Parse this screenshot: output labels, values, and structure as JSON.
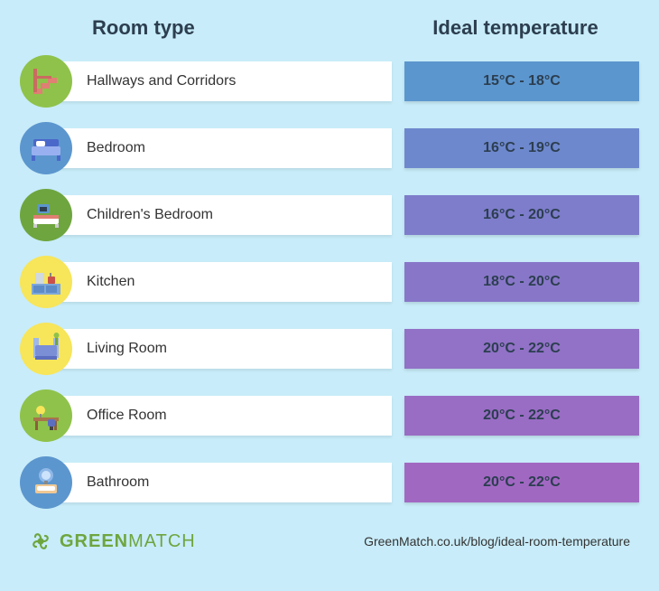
{
  "header": {
    "room_label": "Room type",
    "temp_label": "Ideal temperature"
  },
  "rows": [
    {
      "label": "Hallways and Corridors",
      "temp": "15°C - 18°C",
      "temp_bg": "#5c96ce",
      "icon_bg": "#8fc24a",
      "icon_key": "stairs"
    },
    {
      "label": "Bedroom",
      "temp": "16°C - 19°C",
      "temp_bg": "#6e88ce",
      "icon_bg": "#5c96ce",
      "icon_key": "bed"
    },
    {
      "label": "Children's Bedroom",
      "temp": "16°C - 20°C",
      "temp_bg": "#7d7dcb",
      "icon_bg": "#6fa53f",
      "icon_key": "kidsbed"
    },
    {
      "label": "Kitchen",
      "temp": "18°C - 20°C",
      "temp_bg": "#8877c8",
      "icon_bg": "#f7e55a",
      "icon_key": "kitchen"
    },
    {
      "label": "Living Room",
      "temp": "20°C - 22°C",
      "temp_bg": "#9172c6",
      "icon_bg": "#f7e55a",
      "icon_key": "sofa"
    },
    {
      "label": "Office Room",
      "temp": "20°C - 22°C",
      "temp_bg": "#996dc4",
      "icon_bg": "#8fc24a",
      "icon_key": "desk"
    },
    {
      "label": "Bathroom",
      "temp": "20°C - 22°C",
      "temp_bg": "#a168c2",
      "icon_bg": "#5c96ce",
      "icon_key": "bath"
    }
  ],
  "footer": {
    "brand_bold": "GREEN",
    "brand_light": "MATCH",
    "brand_color": "#6fa53f",
    "url": "GreenMatch.co.uk/blog/ideal-room-temperature"
  },
  "style": {
    "background": "#c8ecf9",
    "row_bg": "#ffffff"
  }
}
